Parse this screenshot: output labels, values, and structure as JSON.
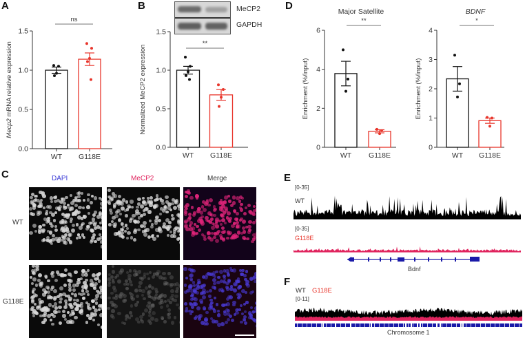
{
  "panels": {
    "A": {
      "label": "A"
    },
    "B": {
      "label": "B"
    },
    "C": {
      "label": "C"
    },
    "D": {
      "label": "D"
    },
    "E": {
      "label": "E"
    },
    "F": {
      "label": "F"
    }
  },
  "colors": {
    "wt": "#111111",
    "g118e": "#e8352b",
    "dapi": "#3a3ad6",
    "mecp2": "#e0245e",
    "gene": "#1a1aa8"
  },
  "chart_data": [
    {
      "id": "A",
      "type": "bar",
      "title": "",
      "categories": [
        "WT",
        "G118E"
      ],
      "values": [
        1.0,
        1.14
      ],
      "sem": [
        0.04,
        0.08
      ],
      "points": [
        [
          1.06,
          1.05,
          0.96,
          0.93
        ],
        [
          1.34,
          1.28,
          1.15,
          1.11,
          0.88
        ]
      ],
      "xlabel": "",
      "ylabel_italic": "Mecp2",
      "ylabel": " mRNA relative expression",
      "ylim": [
        0,
        1.5
      ],
      "yticks": [
        "0.0",
        "0.5",
        "1.0",
        "1.5"
      ],
      "significance": "ns"
    },
    {
      "id": "B",
      "type": "bar",
      "title": "",
      "categories": [
        "WT",
        "G118E"
      ],
      "values": [
        1.0,
        0.68
      ],
      "sem": [
        0.05,
        0.07
      ],
      "points": [
        [
          1.17,
          1.05,
          0.98,
          0.93,
          0.88
        ],
        [
          0.81,
          0.75,
          0.65,
          0.53
        ]
      ],
      "xlabel": "",
      "ylabel": "Normalized MeCP2 expression",
      "ylim": [
        0,
        1.5
      ],
      "yticks": [
        "0.0",
        "0.5",
        "1.0",
        "1.5"
      ],
      "significance": "**",
      "blot_labels": [
        "MeCP2",
        "GAPDH"
      ]
    },
    {
      "id": "D1",
      "type": "bar",
      "title": "Major Satellite",
      "categories": [
        "WT",
        "G118E"
      ],
      "values": [
        3.78,
        0.82
      ],
      "sem": [
        0.63,
        0.08
      ],
      "points": [
        [
          5.0,
          3.5,
          2.87
        ],
        [
          0.92,
          0.85,
          0.7
        ]
      ],
      "xlabel": "",
      "ylabel": "Enrichment (%/input)",
      "ylim": [
        0,
        6
      ],
      "yticks": [
        "0",
        "2",
        "4",
        "6"
      ],
      "significance": "**"
    },
    {
      "id": "D2",
      "type": "bar",
      "title": "BDNF",
      "categories": [
        "WT",
        "G118E"
      ],
      "values": [
        2.34,
        0.91
      ],
      "sem": [
        0.42,
        0.09
      ],
      "points": [
        [
          3.15,
          2.17,
          1.72
        ],
        [
          1.02,
          1.0,
          0.72
        ]
      ],
      "xlabel": "",
      "ylabel": "Enrichment (%/input)",
      "ylim": [
        0,
        4
      ],
      "yticks": [
        "0",
        "1",
        "2",
        "3",
        "4"
      ],
      "significance": "*"
    }
  ],
  "panelC": {
    "columns": [
      "DAPI",
      "MeCP2",
      "Merge"
    ],
    "rows": [
      "WT",
      "G118E"
    ]
  },
  "panelE": {
    "wt_range": "[0-35]",
    "wt_label": "WT",
    "mut_range": "[0-35]",
    "mut_label": "G118E",
    "gene_label": "Bdnf"
  },
  "panelF": {
    "wt_label": "WT",
    "mut_label": "G118E",
    "range": "[0-11]",
    "chrom_label": "Chromosome 1"
  }
}
